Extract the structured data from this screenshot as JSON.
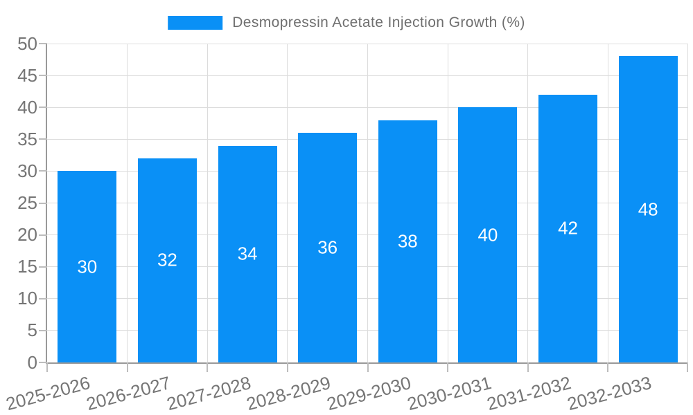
{
  "chart_data": {
    "type": "bar",
    "title": "Desmopressin Acetate Injection Growth (%)",
    "legend": {
      "position": "top-center",
      "items": [
        {
          "label": "Desmopressin Acetate Injection Growth (%)",
          "color": "#0a90f6"
        }
      ]
    },
    "categories": [
      "2025-2026",
      "2026-2027",
      "2027-2028",
      "2028-2029",
      "2029-2030",
      "2030-2031",
      "2031-2032",
      "2032-2033"
    ],
    "series": [
      {
        "name": "Desmopressin Acetate Injection Growth (%)",
        "values": [
          30,
          32,
          34,
          36,
          38,
          40,
          42,
          48
        ]
      }
    ],
    "data_labels": {
      "show": true,
      "position": "inside-center",
      "values": [
        "30",
        "32",
        "34",
        "36",
        "38",
        "40",
        "42",
        "48"
      ]
    },
    "xlabel": "",
    "ylabel": "",
    "ylim": [
      0,
      50
    ],
    "yticks": [
      0,
      5,
      10,
      15,
      20,
      25,
      30,
      35,
      40,
      45,
      50
    ],
    "grid": {
      "horizontal": true,
      "vertical": true
    },
    "x_label_rotation_deg": -15
  },
  "colors": {
    "bar": "#0a90f6",
    "axis_text": "#757575",
    "grid_line": "#dcdcdc",
    "axis_line": "#999999",
    "tick_mark": "#bdbdbd",
    "bar_label": "#ffffff",
    "legend_text": "#6f6f6f",
    "background": "#ffffff"
  }
}
